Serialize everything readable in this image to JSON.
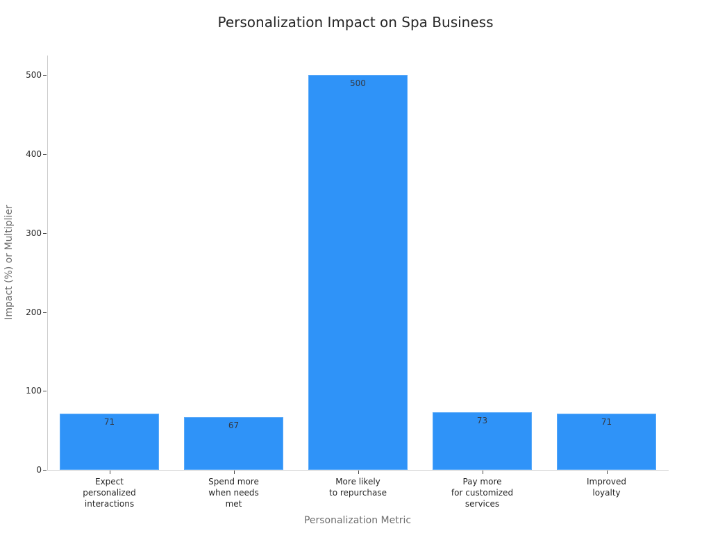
{
  "chart_data": {
    "type": "bar",
    "title": "Personalization Impact on Spa Business",
    "xlabel": "Personalization Metric",
    "ylabel": "Impact (%) or Multiplier",
    "ylim": [
      0,
      525
    ],
    "yticks": [
      0,
      100,
      200,
      300,
      400,
      500
    ],
    "grid": false,
    "legend": null,
    "categories": [
      "Expect\npersonalized\ninteractions",
      "Spend more\nwhen needs\nmet",
      "More likely\nto repurchase",
      "Pay more\nfor customized\nservices",
      "Improved\nloyalty"
    ],
    "values": [
      71,
      67,
      500,
      73,
      71
    ],
    "bar_color": "#2f93f8"
  }
}
